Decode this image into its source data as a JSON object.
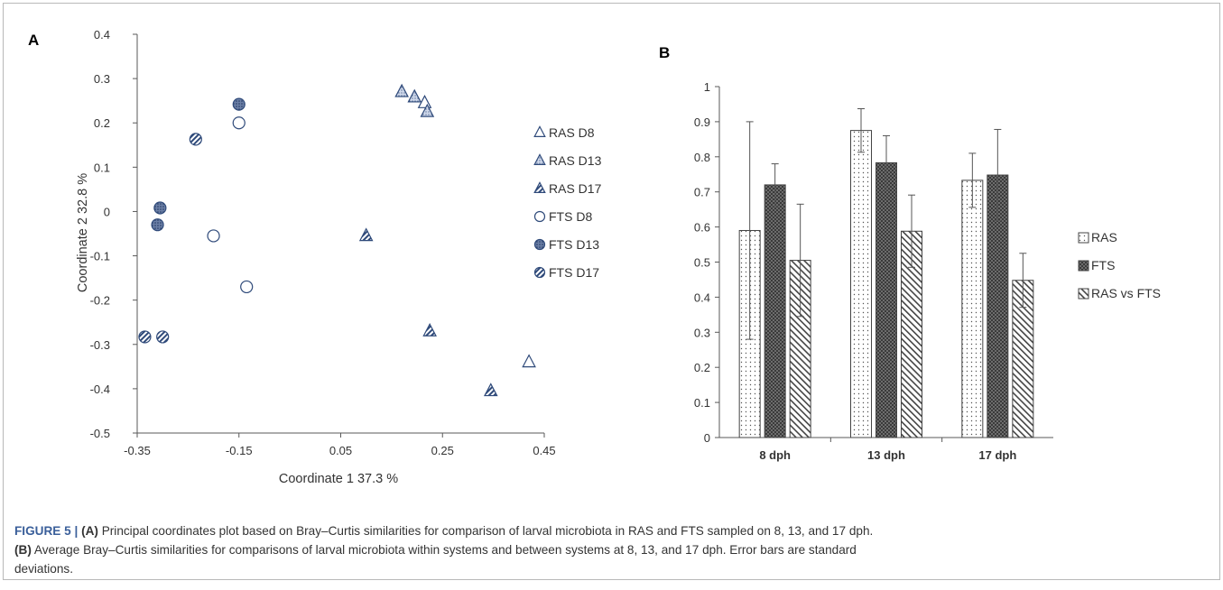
{
  "chart_data": [
    {
      "type": "scatter",
      "panel_label": "A",
      "xlabel": "Coordinate 1 37.3 %",
      "ylabel": "Coordinate 2 32.8 %",
      "xlim": [
        -0.35,
        0.45
      ],
      "ylim": [
        -0.5,
        0.4
      ],
      "xticks": [
        -0.35,
        -0.15,
        0.05,
        0.25,
        0.45
      ],
      "xtick_labels": [
        "-0.35",
        "-0.15",
        "0.05",
        "0.25",
        "0.45"
      ],
      "yticks": [
        0.4,
        0.3,
        0.2,
        0.1,
        0,
        -0.1,
        -0.2,
        -0.3,
        -0.4,
        -0.5
      ],
      "ytick_labels": [
        "0.4",
        "0.3",
        "0.2",
        "0.1",
        "0",
        "-0.1",
        "-0.2",
        "-0.3",
        "-0.4",
        "-0.5"
      ],
      "grid": false,
      "legend_position": "right",
      "series": [
        {
          "name": "RAS D8",
          "marker": "triangle",
          "fill": "none",
          "x": [
            0.215,
            0.42
          ],
          "y": [
            0.245,
            -0.34
          ]
        },
        {
          "name": "RAS D13",
          "marker": "triangle",
          "fill": "dots",
          "x": [
            0.17,
            0.195,
            0.22
          ],
          "y": [
            0.27,
            0.258,
            0.225
          ]
        },
        {
          "name": "RAS D17",
          "marker": "triangle",
          "fill": "diagonal-lines",
          "x": [
            0.1,
            0.225,
            0.345
          ],
          "y": [
            -0.055,
            -0.27,
            -0.405
          ]
        },
        {
          "name": "FTS D8",
          "marker": "circle",
          "fill": "none",
          "x": [
            -0.15,
            -0.2,
            -0.135
          ],
          "y": [
            0.2,
            -0.055,
            -0.17
          ]
        },
        {
          "name": "FTS D13",
          "marker": "circle",
          "fill": "dense-dots",
          "x": [
            -0.15,
            -0.305,
            -0.31
          ],
          "y": [
            0.242,
            0.008,
            -0.03
          ]
        },
        {
          "name": "FTS D17",
          "marker": "circle",
          "fill": "diagonal-lines",
          "x": [
            -0.235,
            -0.335,
            -0.3
          ],
          "y": [
            0.163,
            -0.283,
            -0.283
          ]
        }
      ]
    },
    {
      "type": "bar",
      "panel_label": "B",
      "categories": [
        "8 dph",
        "13 dph",
        "17 dph"
      ],
      "ylim": [
        0,
        1
      ],
      "yticks": [
        1,
        0.9,
        0.8,
        0.7,
        0.6,
        0.5,
        0.4,
        0.3,
        0.2,
        0.1,
        0
      ],
      "ytick_labels": [
        "1",
        "0.9",
        "0.8",
        "0.7",
        "0.6",
        "0.5",
        "0.4",
        "0.3",
        "0.2",
        "0.1",
        "0"
      ],
      "grid": false,
      "legend_position": "right",
      "series": [
        {
          "name": "RAS",
          "pattern": "dots",
          "values": [
            0.59,
            0.875,
            0.733
          ],
          "errors": [
            0.31,
            0.062,
            0.077
          ]
        },
        {
          "name": "FTS",
          "pattern": "checker",
          "values": [
            0.72,
            0.783,
            0.748
          ],
          "errors": [
            0.06,
            0.077,
            0.13
          ]
        },
        {
          "name": "RAS vs FTS",
          "pattern": "diagonal",
          "values": [
            0.505,
            0.588,
            0.448
          ],
          "errors": [
            0.16,
            0.103,
            0.077
          ]
        }
      ]
    }
  ],
  "caption": {
    "figure_label": "FIGURE 5 |",
    "part_a_label": "(A)",
    "part_a_text": " Principal coordinates plot based on Bray–Curtis similarities for comparison of larval microbiota in RAS and FTS sampled on 8, 13, and 17 dph.",
    "part_b_label": "(B)",
    "part_b_text": " Average Bray–Curtis similarities for comparisons of larval microbiota within systems and between systems at 8, 13, and 17 dph. Error bars are standard",
    "part_b_text_end": "deviations."
  },
  "colors": {
    "marker_stroke": "#2f4a7a",
    "bar_stroke": "#444444",
    "axis": "#595959",
    "fts_fill": "#5a5a5a"
  }
}
